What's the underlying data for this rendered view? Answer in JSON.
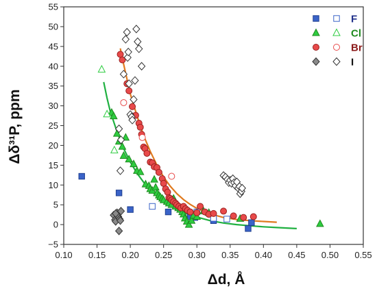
{
  "chart_data": {
    "type": "scatter",
    "xlabel": "Δd, Å",
    "ylabel": "Δδ³¹P, ppm",
    "xlim": [
      0.1,
      0.55
    ],
    "ylim": [
      -5,
      55
    ],
    "xticks": [
      "0.10",
      "0.15",
      "0.20",
      "0.25",
      "0.30",
      "0.35",
      "0.40",
      "0.45",
      "0.50",
      "0.55"
    ],
    "yticks": [
      "−5",
      "0",
      "5",
      "10",
      "15",
      "20",
      "25",
      "30",
      "35",
      "40",
      "45",
      "50",
      "55"
    ],
    "legend_placement": "top-right",
    "grid": false,
    "series": [
      {
        "name": "F",
        "color": "#3a63c8",
        "label_color": "#1f2f8a",
        "marker": "square",
        "filled": [
          [
            0.127,
            12.2
          ],
          [
            0.183,
            8
          ],
          [
            0.2,
            3.8
          ],
          [
            0.257,
            3.2
          ],
          [
            0.28,
            4
          ],
          [
            0.29,
            2
          ],
          [
            0.297,
            1.8
          ],
          [
            0.325,
            1
          ],
          [
            0.377,
            -1
          ],
          [
            0.382,
            0.5
          ]
        ],
        "open": [
          [
            0.233,
            4.6
          ],
          [
            0.3,
            3.2
          ],
          [
            0.325,
            1.6
          ],
          [
            0.345,
            1.4
          ]
        ]
      },
      {
        "name": "Cl",
        "color": "#2ecc40",
        "label_color": "#1f8a1f",
        "marker": "triangle",
        "filled": [
          [
            0.172,
            28.3
          ],
          [
            0.175,
            27.4
          ],
          [
            0.18,
            23
          ],
          [
            0.183,
            21
          ],
          [
            0.188,
            19.7
          ],
          [
            0.19,
            17.4
          ],
          [
            0.193,
            22
          ],
          [
            0.198,
            16.5
          ],
          [
            0.205,
            15.3
          ],
          [
            0.21,
            13.6
          ],
          [
            0.215,
            13.3
          ],
          [
            0.223,
            10.2
          ],
          [
            0.228,
            9.8
          ],
          [
            0.23,
            9
          ],
          [
            0.233,
            8.6
          ],
          [
            0.236,
            11.4
          ],
          [
            0.238,
            9.4
          ],
          [
            0.24,
            8
          ],
          [
            0.243,
            7.4
          ],
          [
            0.245,
            7
          ],
          [
            0.248,
            6.6
          ],
          [
            0.25,
            6.2
          ],
          [
            0.255,
            5.8
          ],
          [
            0.258,
            5.4
          ],
          [
            0.262,
            5
          ],
          [
            0.265,
            6.6
          ],
          [
            0.268,
            4.6
          ],
          [
            0.272,
            4.2
          ],
          [
            0.275,
            3.8
          ],
          [
            0.278,
            3.2
          ],
          [
            0.28,
            2.6
          ],
          [
            0.282,
            1.6
          ],
          [
            0.285,
            0.8
          ],
          [
            0.288,
            0
          ],
          [
            0.292,
            1
          ],
          [
            0.295,
            2.3
          ],
          [
            0.3,
            2
          ],
          [
            0.31,
            3.4
          ],
          [
            0.318,
            3
          ],
          [
            0.365,
            1.5
          ],
          [
            0.485,
            0.2
          ]
        ],
        "open": [
          [
            0.157,
            39.2
          ],
          [
            0.165,
            27.9
          ],
          [
            0.176,
            18.8
          ]
        ]
      },
      {
        "name": "Br",
        "color": "#e84a4a",
        "label_color": "#8b1a1a",
        "marker": "circle",
        "filled": [
          [
            0.185,
            43
          ],
          [
            0.188,
            41.6
          ],
          [
            0.195,
            35.6
          ],
          [
            0.198,
            33.8
          ],
          [
            0.203,
            29.8
          ],
          [
            0.208,
            27.6
          ],
          [
            0.213,
            25.6
          ],
          [
            0.215,
            24.6
          ],
          [
            0.217,
            22.8
          ],
          [
            0.22,
            19.6
          ],
          [
            0.222,
            19.2
          ],
          [
            0.225,
            18
          ],
          [
            0.23,
            15.8
          ],
          [
            0.233,
            15.6
          ],
          [
            0.236,
            14.6
          ],
          [
            0.24,
            14.4
          ],
          [
            0.243,
            13.2
          ],
          [
            0.248,
            11.6
          ],
          [
            0.25,
            10.4
          ],
          [
            0.253,
            9
          ],
          [
            0.256,
            8.2
          ],
          [
            0.258,
            6.8
          ],
          [
            0.26,
            6.6
          ],
          [
            0.262,
            6.2
          ],
          [
            0.265,
            5.8
          ],
          [
            0.268,
            5.4
          ],
          [
            0.27,
            5
          ],
          [
            0.273,
            4.6
          ],
          [
            0.276,
            4.2
          ],
          [
            0.28,
            4.6
          ],
          [
            0.283,
            4
          ],
          [
            0.286,
            3.6
          ],
          [
            0.29,
            3.2
          ],
          [
            0.3,
            3
          ],
          [
            0.305,
            4.6
          ],
          [
            0.312,
            3.2
          ],
          [
            0.318,
            2.6
          ],
          [
            0.325,
            2.8
          ],
          [
            0.34,
            3.4
          ],
          [
            0.355,
            2.2
          ],
          [
            0.37,
            1.8
          ],
          [
            0.385,
            2
          ]
        ],
        "open": [
          [
            0.19,
            30.8
          ],
          [
            0.218,
            22
          ],
          [
            0.262,
            12.2
          ]
        ]
      },
      {
        "name": "I",
        "color": "#8a8a8a",
        "label_color": "#111111",
        "marker": "diamond",
        "filled": [
          [
            0.175,
            2.4
          ],
          [
            0.177,
            1.2
          ],
          [
            0.178,
            0.8
          ],
          [
            0.18,
            3
          ],
          [
            0.182,
            2
          ],
          [
            0.184,
            1.4
          ],
          [
            0.185,
            1
          ],
          [
            0.186,
            3.4
          ],
          [
            0.183,
            -1.6
          ],
          [
            0.178,
            2.8
          ]
        ],
        "open": [
          [
            0.183,
            24.2
          ],
          [
            0.185,
            13.6
          ],
          [
            0.186,
            21.4
          ],
          [
            0.19,
            38
          ],
          [
            0.193,
            46.8
          ],
          [
            0.195,
            48.6
          ],
          [
            0.196,
            42.2
          ],
          [
            0.197,
            43.6
          ],
          [
            0.198,
            35.6
          ],
          [
            0.2,
            27.8
          ],
          [
            0.202,
            27.2
          ],
          [
            0.203,
            26.4
          ],
          [
            0.205,
            31.6
          ],
          [
            0.207,
            36.4
          ],
          [
            0.209,
            49.4
          ],
          [
            0.211,
            46.2
          ],
          [
            0.213,
            44.4
          ],
          [
            0.217,
            40
          ],
          [
            0.34,
            12.4
          ],
          [
            0.343,
            12
          ],
          [
            0.346,
            11.4
          ],
          [
            0.348,
            10.6
          ],
          [
            0.35,
            11.2
          ],
          [
            0.352,
            10.4
          ],
          [
            0.354,
            11.6
          ],
          [
            0.356,
            10.6
          ],
          [
            0.358,
            9.8
          ],
          [
            0.36,
            10.8
          ],
          [
            0.362,
            9.2
          ],
          [
            0.364,
            9.6
          ],
          [
            0.365,
            7.8
          ],
          [
            0.367,
            8.4
          ],
          [
            0.368,
            9.2
          ]
        ]
      }
    ],
    "fits": [
      {
        "for": "Br",
        "color": "#e07a1f",
        "points": [
          [
            0.185,
            44.5
          ],
          [
            0.19,
            40.5
          ],
          [
            0.2,
            33
          ],
          [
            0.21,
            27.5
          ],
          [
            0.22,
            22.5
          ],
          [
            0.23,
            18.5
          ],
          [
            0.24,
            15
          ],
          [
            0.25,
            12
          ],
          [
            0.26,
            9.7
          ],
          [
            0.27,
            7.8
          ],
          [
            0.28,
            6.3
          ],
          [
            0.29,
            5.1
          ],
          [
            0.3,
            4.1
          ],
          [
            0.32,
            2.7
          ],
          [
            0.34,
            1.8
          ],
          [
            0.36,
            1.3
          ],
          [
            0.38,
            1.0
          ],
          [
            0.4,
            0.8
          ],
          [
            0.42,
            0.6
          ]
        ]
      },
      {
        "for": "Cl",
        "color": "#1fb040",
        "points": [
          [
            0.16,
            36
          ],
          [
            0.165,
            32
          ],
          [
            0.17,
            28.5
          ],
          [
            0.18,
            23.5
          ],
          [
            0.19,
            19.2
          ],
          [
            0.2,
            15.8
          ],
          [
            0.21,
            13
          ],
          [
            0.22,
            10.7
          ],
          [
            0.23,
            8.8
          ],
          [
            0.24,
            7.2
          ],
          [
            0.25,
            5.9
          ],
          [
            0.26,
            4.8
          ],
          [
            0.27,
            3.9
          ],
          [
            0.28,
            3.1
          ],
          [
            0.29,
            2.4
          ],
          [
            0.3,
            1.9
          ],
          [
            0.32,
            1.0
          ],
          [
            0.34,
            0.4
          ],
          [
            0.36,
            0
          ],
          [
            0.38,
            -0.3
          ],
          [
            0.4,
            -0.55
          ],
          [
            0.42,
            -0.75
          ],
          [
            0.45,
            -1.0
          ]
        ]
      }
    ]
  }
}
